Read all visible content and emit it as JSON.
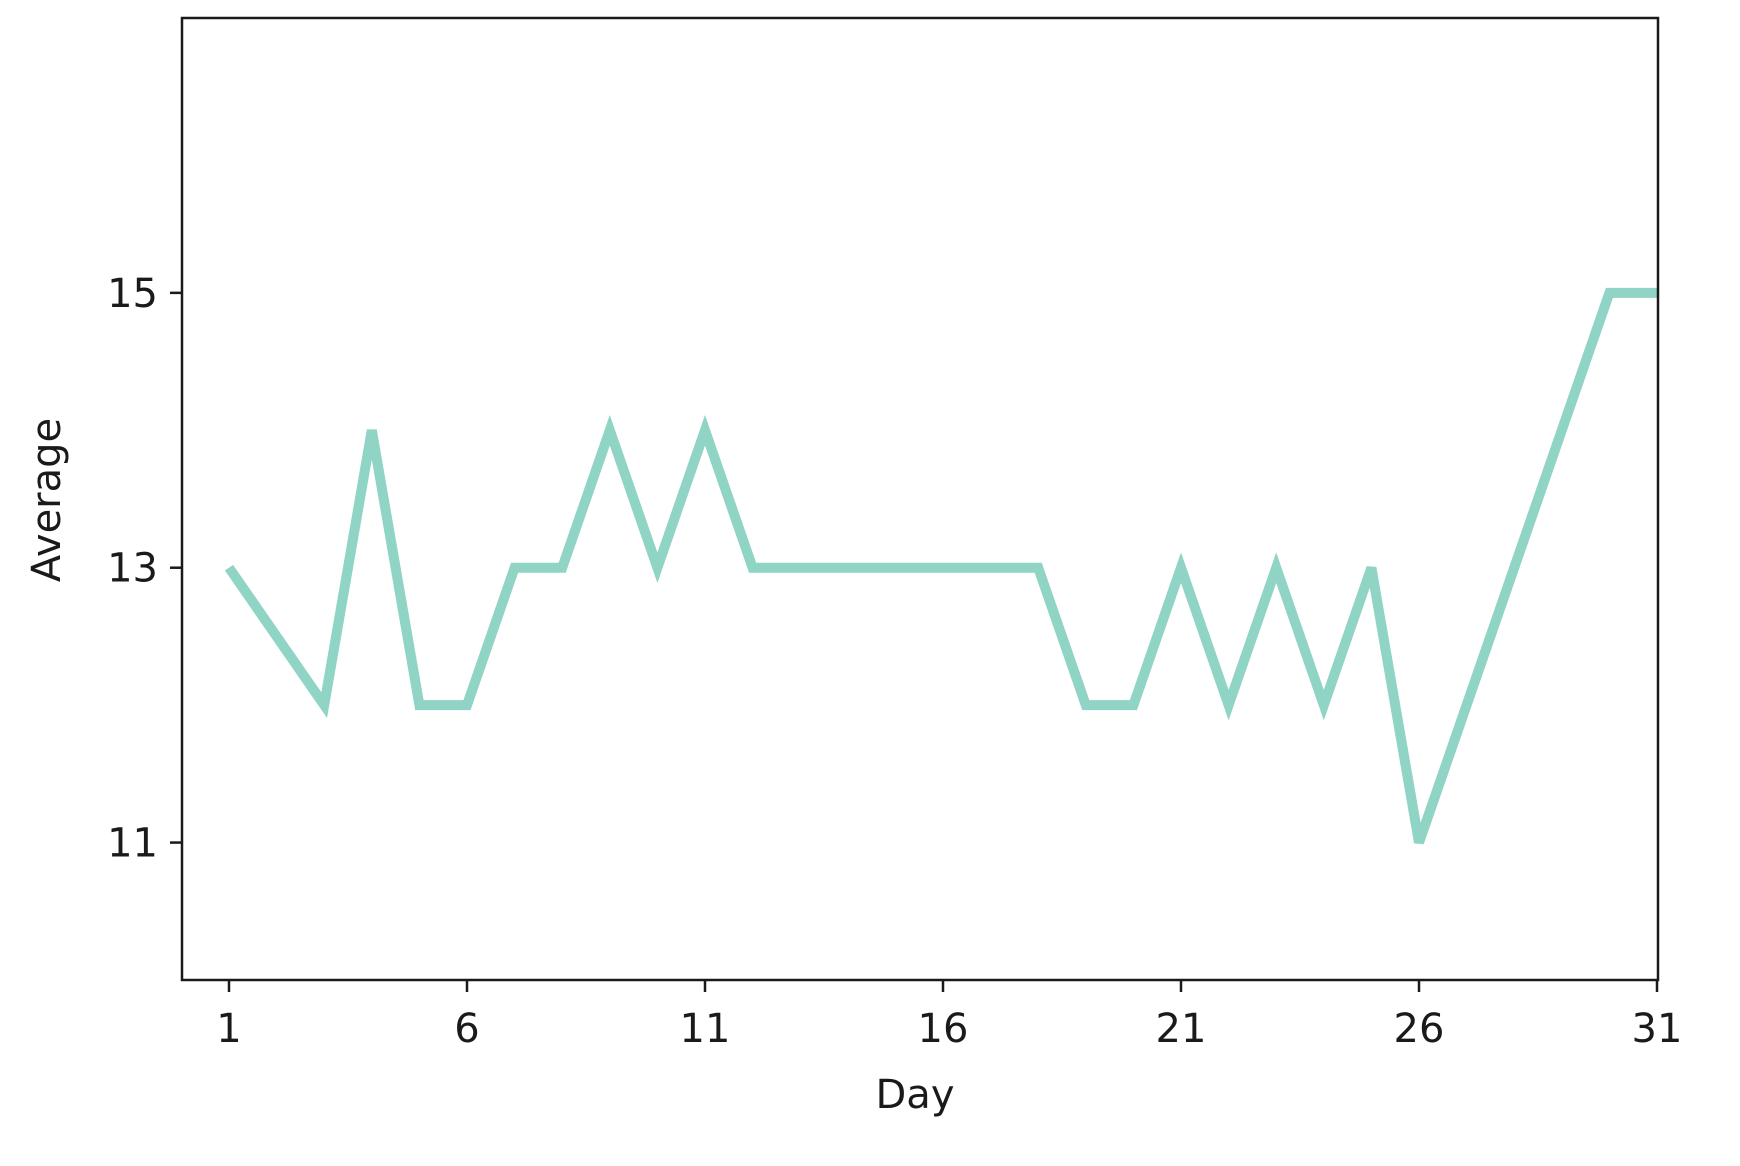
{
  "chart_data": {
    "type": "line",
    "title": "",
    "xlabel": "Day",
    "ylabel": "Average",
    "xlim": [
      0,
      31
    ],
    "ylim": [
      10,
      17
    ],
    "xticks": [
      1,
      6,
      11,
      16,
      21,
      26,
      31
    ],
    "xtick_labels": [
      "1",
      "6",
      "11",
      "16",
      "21",
      "26",
      "31"
    ],
    "yticks": [
      11,
      13,
      15
    ],
    "ytick_labels": [
      "11",
      "13",
      "15"
    ],
    "grid": false,
    "legend": "none",
    "series": [
      {
        "color": "#8fd4c4",
        "x": [
          1,
          2,
          3,
          4,
          5,
          6,
          7,
          8,
          9,
          10,
          11,
          12,
          13,
          14,
          15,
          16,
          17,
          18,
          19,
          20,
          21,
          22,
          23,
          24,
          25,
          26,
          27,
          28,
          29,
          30,
          31
        ],
        "y": [
          13,
          12.5,
          12,
          14,
          12,
          12,
          13,
          13,
          14,
          13,
          14,
          13,
          13,
          13,
          13,
          13,
          13,
          13,
          12,
          12,
          13,
          12,
          13,
          12,
          13,
          11,
          12,
          13,
          14,
          15,
          15
        ]
      }
    ]
  }
}
